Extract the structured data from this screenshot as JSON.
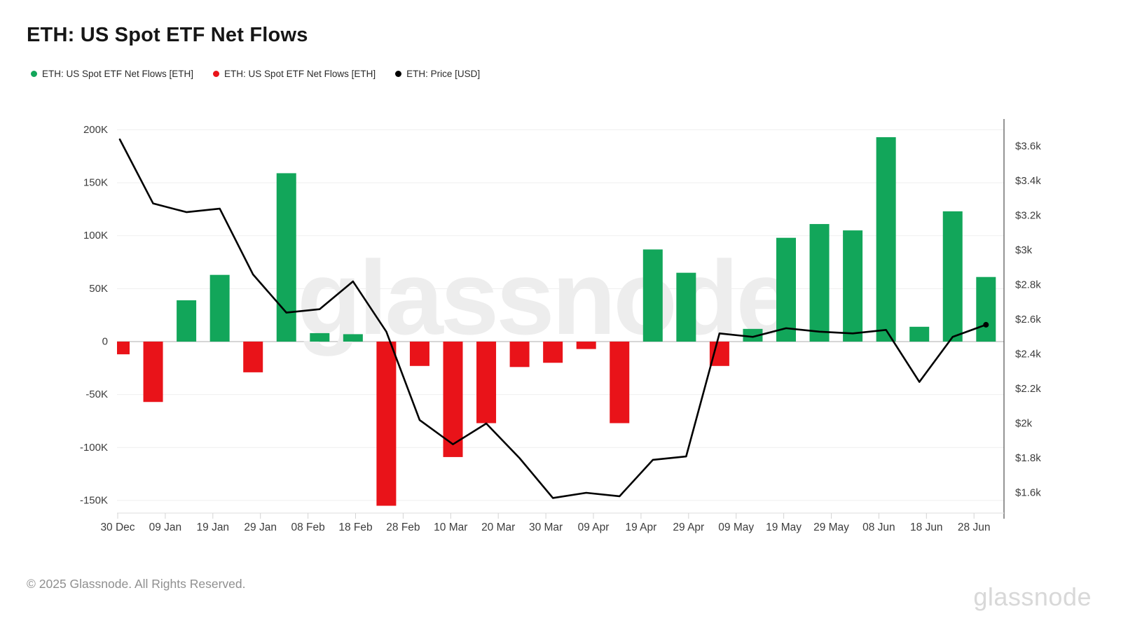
{
  "page": {
    "title": "ETH: US Spot ETF Net Flows"
  },
  "legend": {
    "items": [
      {
        "label": "ETH: US Spot ETF Net Flows [ETH]",
        "color": "#12a65a"
      },
      {
        "label": "ETH: US Spot ETF Net Flows [ETH]",
        "color": "#e91319"
      },
      {
        "label": "ETH: Price [USD]",
        "color": "#000000"
      }
    ]
  },
  "watermark": "glassnode",
  "footer": {
    "copyright": "© 2025 Glassnode. All Rights Reserved.",
    "brand": "glassnode"
  },
  "chart_data": {
    "type": "combo_bar_line",
    "title": "ETH: US Spot ETF Net Flows",
    "grid": "horizontal_only",
    "legend_position": "top-left",
    "x_weekly": [
      "30 Dec",
      "06 Jan",
      "13 Jan",
      "20 Jan",
      "27 Jan",
      "03 Feb",
      "10 Feb",
      "17 Feb",
      "24 Feb",
      "03 Mar",
      "10 Mar",
      "17 Mar",
      "24 Mar",
      "31 Mar",
      "07 Apr",
      "14 Apr",
      "21 Apr",
      "28 Apr",
      "05 May",
      "12 May",
      "19 May",
      "26 May",
      "02 Jun",
      "09 Jun",
      "16 Jun",
      "23 Jun",
      "30 Jun"
    ],
    "series": [
      {
        "name": "ETH: US Spot ETF Net Flows [ETH]",
        "type": "bar",
        "axis": "left",
        "unit": "ETH",
        "color_positive": "#12a65a",
        "color_negative": "#e91319",
        "values_eth": [
          -12000,
          -57000,
          39000,
          63000,
          -29000,
          159000,
          8000,
          7000,
          -155000,
          -23000,
          -109000,
          -77000,
          -24000,
          -20000,
          -7000,
          -77000,
          87000,
          65000,
          -23000,
          12000,
          98000,
          111000,
          105000,
          193000,
          14000,
          123000,
          61000
        ]
      },
      {
        "name": "ETH: Price [USD]",
        "type": "line",
        "axis": "right",
        "unit": "USD",
        "color": "#000000",
        "values_usd": [
          3640,
          3270,
          3220,
          3240,
          2860,
          2640,
          2660,
          2820,
          2530,
          2020,
          1880,
          2000,
          1800,
          1570,
          1600,
          1580,
          1790,
          1810,
          2520,
          2500,
          2550,
          2530,
          2520,
          2540,
          2240,
          2500,
          2570
        ]
      }
    ],
    "left_axis": {
      "tick_labels": [
        "200K",
        "150K",
        "100K",
        "50K",
        "0",
        "-50K",
        "-100K",
        "-150K"
      ],
      "tick_values": [
        200000,
        150000,
        100000,
        50000,
        0,
        -50000,
        -100000,
        -150000
      ],
      "approx_range": [
        -162000,
        210000
      ]
    },
    "right_axis": {
      "tick_labels": [
        "$3.6k",
        "$3.4k",
        "$3.2k",
        "$3k",
        "$2.8k",
        "$2.6k",
        "$2.4k",
        "$2.2k",
        "$2k",
        "$1.8k",
        "$1.6k"
      ],
      "tick_values": [
        3600,
        3400,
        3200,
        3000,
        2800,
        2600,
        2400,
        2200,
        2000,
        1800,
        1600
      ],
      "approx_range": [
        1490,
        3750
      ]
    },
    "x_tick_labels": [
      "30 Dec",
      "09 Jan",
      "19 Jan",
      "29 Jan",
      "08 Feb",
      "18 Feb",
      "28 Feb",
      "10 Mar",
      "20 Mar",
      "30 Mar",
      "09 Apr",
      "19 Apr",
      "29 Apr",
      "09 May",
      "19 May",
      "29 May",
      "08 Jun",
      "18 Jun",
      "28 Jun"
    ]
  }
}
